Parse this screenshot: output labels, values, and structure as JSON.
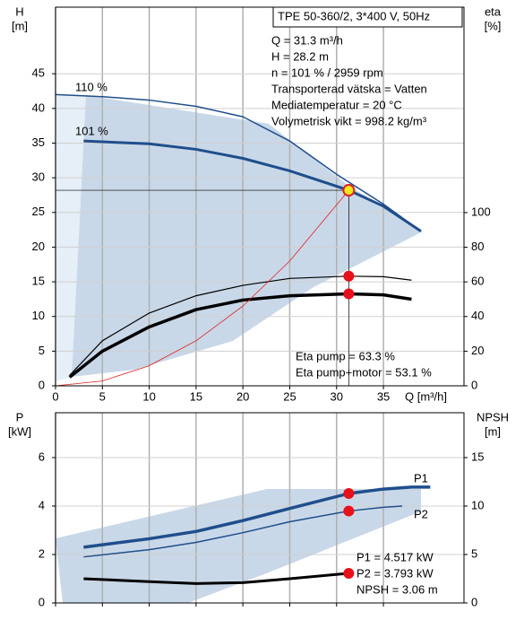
{
  "info_box": {
    "title": "TPE 50-360/2, 3*400 V, 50Hz",
    "lines": [
      "Q = 31.3 m³/h",
      "H = 28.2 m",
      "n = 101 % / 2959 rpm",
      "Transporterad vätska = Vatten",
      "Mediatemperatur = 20 °C",
      "Volymetrisk vikt = 998.2 kg/m³"
    ]
  },
  "operating_point": {
    "q": 31.3,
    "h": 28.2,
    "eta_pump": 63.3,
    "eta_total": 53.1,
    "p1": 4.517,
    "p2": 3.793,
    "npsh": 3.06
  },
  "chart_data": [
    {
      "type": "line",
      "x_label": "Q [m³/h]",
      "y_label": "H",
      "y_unit": "[m]",
      "y2_label": "eta",
      "y2_unit": "[%]",
      "xlim": [
        0,
        43.6
      ],
      "xticks": [
        0,
        5,
        10,
        15,
        20,
        25,
        30,
        35
      ],
      "ylim": [
        0,
        54.6
      ],
      "yticks": [
        0,
        5,
        10,
        15,
        20,
        25,
        30,
        35,
        40,
        45
      ],
      "y2lim": [
        0,
        218.6
      ],
      "y2ticks": [
        0,
        20,
        40,
        60,
        80,
        100
      ],
      "grid": true,
      "series": [
        {
          "name": "110 %",
          "color": "#1f4e8c",
          "x": [
            0,
            5,
            10,
            15,
            20,
            25,
            30,
            35,
            39
          ],
          "values": [
            42,
            41.7,
            41.2,
            40.3,
            38.8,
            35.3,
            30.5,
            26.2,
            22.3
          ]
        },
        {
          "name": "101 %",
          "color": "#1f4e8c",
          "x": [
            3,
            10,
            15,
            20,
            25,
            31.3,
            35,
            39
          ],
          "values": [
            35.3,
            34.9,
            34.1,
            32.8,
            31,
            28.2,
            25.9,
            22.3
          ]
        },
        {
          "color": "#000000",
          "axis": "y2",
          "x": [
            1.5,
            5,
            10,
            15,
            20,
            25,
            31.3,
            35,
            38
          ],
          "values": [
            6,
            26,
            42,
            52,
            58,
            62,
            63.3,
            63,
            61
          ]
        },
        {
          "color": "#000000",
          "axis": "y2",
          "x": [
            1.5,
            5,
            10,
            15,
            20,
            25,
            31.3,
            35,
            38
          ],
          "values": [
            5,
            20,
            34,
            44,
            49.5,
            52,
            53.1,
            52.5,
            50
          ]
        },
        {
          "color": "#e02020",
          "x": [
            0,
            5,
            10,
            15,
            20,
            25,
            31.3
          ],
          "values": [
            0,
            0.7,
            2.9,
            6.5,
            11.5,
            18,
            28.2
          ]
        }
      ],
      "annotations": [
        "Eta pump = 63.3 %",
        "Eta pump+motor = 53.1 %"
      ]
    },
    {
      "type": "line",
      "y_label": "P",
      "y_unit": "[kW]",
      "y2_label": "NPSH",
      "y2_unit": "[m]",
      "xlim": [
        0,
        43.6
      ],
      "xticks": [
        0,
        5,
        10,
        15,
        20,
        25,
        30,
        35
      ],
      "ylim": [
        0,
        7.85
      ],
      "yticks": [
        0,
        2,
        4,
        6
      ],
      "y2lim": [
        0,
        19.63
      ],
      "y2ticks": [
        0,
        5,
        10,
        15
      ],
      "grid": true,
      "series": [
        {
          "name": "P1",
          "color": "#1f4e8c",
          "x": [
            3,
            10,
            15,
            20,
            25,
            31.3,
            35,
            38,
            40
          ],
          "values": [
            2.3,
            2.65,
            2.95,
            3.4,
            3.9,
            4.517,
            4.7,
            4.78,
            4.78
          ]
        },
        {
          "name": "P2",
          "color": "#1f4e8c",
          "x": [
            3,
            10,
            15,
            20,
            25,
            31.3,
            35,
            37
          ],
          "values": [
            1.9,
            2.2,
            2.5,
            2.9,
            3.35,
            3.793,
            3.95,
            4.0
          ]
        },
        {
          "color": "#000000",
          "axis": "y2",
          "x": [
            3,
            10,
            15,
            20,
            25,
            31.3
          ],
          "values": [
            2.5,
            2.2,
            2.0,
            2.1,
            2.5,
            3.06
          ]
        }
      ],
      "annotations": [
        "P1 = 4.517 kW",
        "P2 = 3.793 kW",
        "NPSH = 3.06 m"
      ]
    }
  ]
}
